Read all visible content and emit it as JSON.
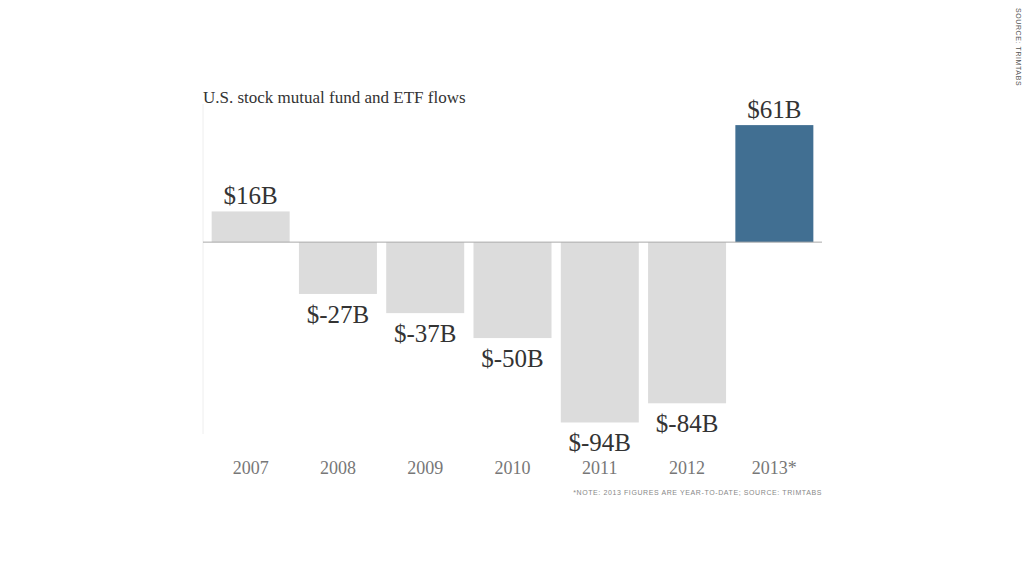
{
  "chart_data": {
    "type": "bar",
    "title": "U.S. stock mutual fund and ETF flows",
    "categories": [
      "2007",
      "2008",
      "2009",
      "2010",
      "2011",
      "2012",
      "2013*"
    ],
    "values": [
      16,
      -27,
      -37,
      -50,
      -94,
      -84,
      61
    ],
    "value_labels": [
      "$16B",
      "$-27B",
      "$-37B",
      "$-50B",
      "$-94B",
      "$-84B",
      "$61B"
    ],
    "colors": [
      "#dcdcdc",
      "#dcdcdc",
      "#dcdcdc",
      "#dcdcdc",
      "#dcdcdc",
      "#dcdcdc",
      "#416f92"
    ],
    "ylim": [
      -100,
      72
    ],
    "yticks": [
      0
    ],
    "grid": false,
    "data_labels": true,
    "tick_labels": "x",
    "note": "*NOTE: 2013 FIGURES ARE YEAR-TO-DATE; SOURCE: TRIMTABS",
    "source": "SOURCE: TRIMTABS"
  }
}
